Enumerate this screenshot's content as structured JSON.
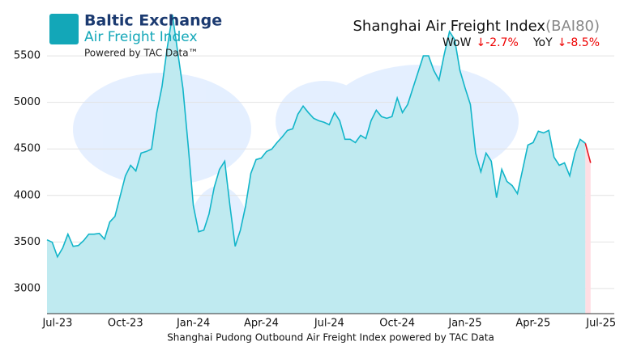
{
  "chart_data": {
    "type": "area",
    "title": "Shanghai Air Freight Index",
    "title_code": "(BAI80)",
    "changes": [
      {
        "label": "WoW",
        "change": "↓-2.7%"
      },
      {
        "label": "YoY",
        "change": "↓-8.5%"
      }
    ],
    "brand": {
      "name": "Baltic Exchange",
      "product": "Air Freight Index",
      "powered": "Powered by TAC Data™"
    },
    "caption": "Shanghai Pudong Outbound Air Freight Index powered by TAC Data",
    "categories": [
      null,
      null,
      "Jul-23",
      null,
      null,
      null,
      null,
      null,
      null,
      null,
      null,
      null,
      null,
      null,
      null,
      "Oct-23",
      null,
      null,
      null,
      null,
      null,
      null,
      null,
      null,
      null,
      null,
      null,
      null,
      "Jan-24",
      null,
      null,
      null,
      null,
      null,
      null,
      null,
      null,
      null,
      null,
      null,
      null,
      "Apr-24",
      null,
      null,
      null,
      null,
      null,
      null,
      null,
      null,
      null,
      null,
      null,
      null,
      "Jul-24",
      null,
      null,
      null,
      null,
      null,
      null,
      null,
      null,
      null,
      null,
      null,
      null,
      "Oct-24",
      null,
      null,
      null,
      null,
      null,
      null,
      null,
      null,
      null,
      null,
      null,
      null,
      "Jan-25",
      null,
      null,
      null,
      null,
      null,
      null,
      null,
      null,
      null,
      null,
      null,
      null,
      "Apr-25",
      null,
      null,
      null,
      null,
      null,
      null,
      null,
      null,
      null,
      null,
      null,
      null,
      "Jul-25"
    ],
    "series": [
      {
        "color": "#12b5c9",
        "fill": "#bfeaf0",
        "values": [
          3523,
          3497,
          3340,
          3435,
          3584,
          3453,
          3462,
          3514,
          3584,
          3584,
          3592,
          3531,
          3714,
          3775,
          3993,
          4211,
          4324,
          4263,
          4455,
          4472,
          4498,
          4890,
          5169,
          5587,
          5940,
          5544,
          5152,
          4542,
          3888,
          3610,
          3627,
          3801,
          4089,
          4280,
          4368,
          3888,
          3453,
          3627,
          3888,
          4237,
          4385,
          4402,
          4472,
          4498,
          4568,
          4629,
          4699,
          4716,
          4873,
          4960,
          4890,
          4829,
          4803,
          4786,
          4760,
          4890,
          4803,
          4603,
          4603,
          4568,
          4646,
          4611,
          4803,
          4916,
          4847,
          4829,
          4847,
          5047,
          4890,
          4977,
          5152,
          5326,
          5500,
          5500,
          5343,
          5239,
          5517,
          5761,
          5674,
          5343,
          5152,
          4977,
          4455,
          4254,
          4455,
          4368,
          3976,
          4280,
          4150,
          4106,
          4019,
          4280,
          4542,
          4568,
          4690,
          4672,
          4699,
          4411,
          4324,
          4350,
          4211,
          4455,
          4603,
          4560,
          4350,
          null,
          null
        ]
      }
    ],
    "latest_color": "#e8141e",
    "latest_fill": "#ffdde3",
    "ylim": [
      2730,
      6100
    ],
    "yticks": [
      3000,
      3500,
      4000,
      4500,
      5000,
      5500
    ],
    "grid": true
  }
}
